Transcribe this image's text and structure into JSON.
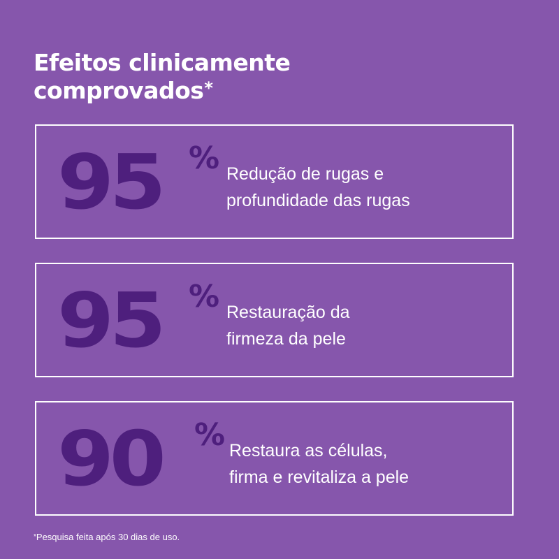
{
  "heading": {
    "line1": "Efeitos clinicamente",
    "line2": "comprovados",
    "asterisk": "*"
  },
  "stats": [
    {
      "value": "95",
      "unit": "%",
      "desc_line1": "Redução de rugas e",
      "desc_line2": "profundidade das rugas"
    },
    {
      "value": "95",
      "unit": "%",
      "desc_line1": "Restauração da",
      "desc_line2": "firmeza da pele"
    },
    {
      "value": "90",
      "unit": "%",
      "desc_line1": "Restaura as células,",
      "desc_line2": "firma e revitaliza a pele"
    }
  ],
  "footnote": {
    "asterisk": "*",
    "text": "Pesquisa feita após 30 dias de uso."
  },
  "colors": {
    "background": "#8656ac",
    "stat_number": "#4e1f7d",
    "text": "#ffffff",
    "border": "#ffffff"
  }
}
